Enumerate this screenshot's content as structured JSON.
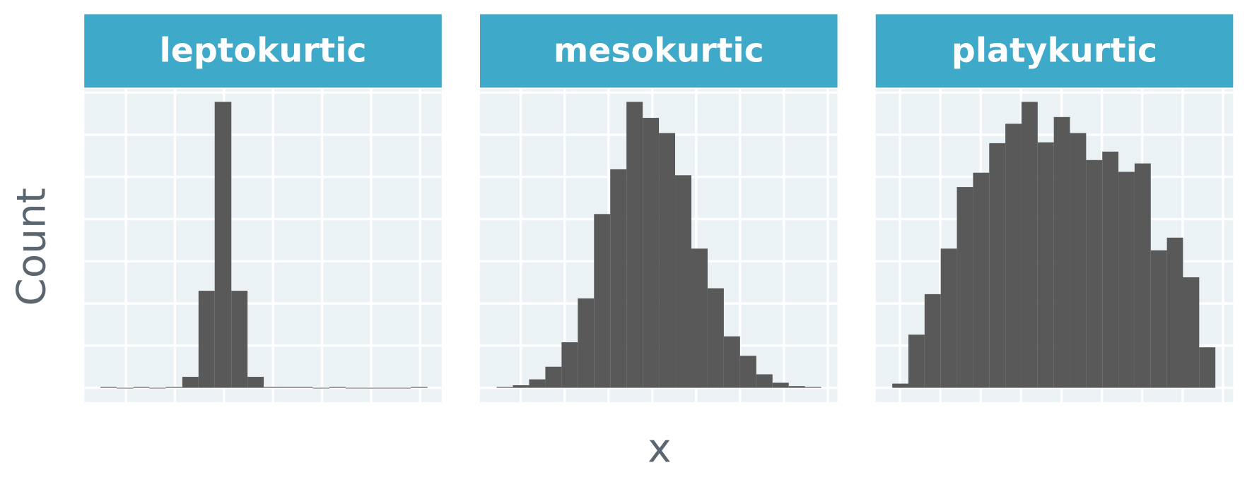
{
  "chart_data": {
    "type": "histogram",
    "xlabel": "x",
    "ylabel": "Count",
    "grid": true,
    "strip_color": "#3fa9c9",
    "panel_color": "#ebf2f5",
    "facets": [
      {
        "title": "leptokurtic",
        "color": "#595959",
        "xlim": [
          -2.85,
          4.44
        ],
        "ylim": [
          -17,
          354
        ],
        "xticks": [
          -2,
          -1,
          0,
          1,
          2,
          3,
          4
        ],
        "yticks": [
          0,
          50,
          100,
          150,
          200,
          250,
          300,
          350
        ],
        "bins": [
          -2.52,
          -2.19,
          -1.85,
          -1.52,
          -1.19,
          -0.85,
          -0.52,
          -0.19,
          0.15,
          0.48,
          0.81,
          1.15,
          1.48,
          1.81,
          2.15,
          2.48,
          2.81,
          3.15,
          3.48,
          3.81,
          4.15
        ],
        "values": [
          1,
          0,
          1,
          0,
          1,
          13,
          115,
          339,
          115,
          13,
          1,
          1,
          1,
          0,
          1,
          0,
          0,
          0,
          0,
          1
        ]
      },
      {
        "title": "mesokurtic",
        "color": "#595959",
        "xlim": [
          -3.93,
          4.22
        ],
        "ylim": [
          -17,
          354
        ],
        "xticks": [
          -3,
          -2,
          -1,
          0,
          1,
          2,
          3,
          4
        ],
        "yticks": [
          0,
          50,
          100,
          150,
          200,
          250,
          300,
          350
        ],
        "bins": [
          -3.55,
          -3.18,
          -2.81,
          -2.44,
          -2.07,
          -1.7,
          -1.33,
          -0.96,
          -0.59,
          -0.22,
          0.15,
          0.52,
          0.89,
          1.26,
          1.63,
          2,
          2.37,
          2.74,
          3.11,
          3.48,
          3.85
        ],
        "values": [
          1,
          3,
          10,
          25,
          54,
          106,
          206,
          259,
          339,
          320,
          302,
          252,
          165,
          118,
          61,
          38,
          16,
          6,
          2,
          1
        ]
      },
      {
        "title": "platykurtic",
        "color": "#595959",
        "xlim": [
          -4.6,
          4.25
        ],
        "ylim": [
          -17,
          354
        ],
        "xticks": [
          -4,
          -3,
          -2,
          -1,
          0,
          1,
          2,
          3,
          4
        ],
        "yticks": [
          0,
          50,
          100,
          150,
          200,
          250,
          300,
          350
        ],
        "bins": [
          -4.19,
          -3.79,
          -3.39,
          -2.99,
          -2.59,
          -2.19,
          -1.79,
          -1.39,
          -0.99,
          -0.59,
          -0.19,
          0.21,
          0.61,
          1.01,
          1.41,
          1.81,
          2.21,
          2.61,
          3.01,
          3.41,
          3.81
        ],
        "values": [
          5,
          63,
          111,
          165,
          238,
          255,
          290,
          313,
          339,
          291,
          321,
          302,
          270,
          280,
          256,
          266,
          163,
          178,
          131,
          48
        ]
      }
    ]
  }
}
